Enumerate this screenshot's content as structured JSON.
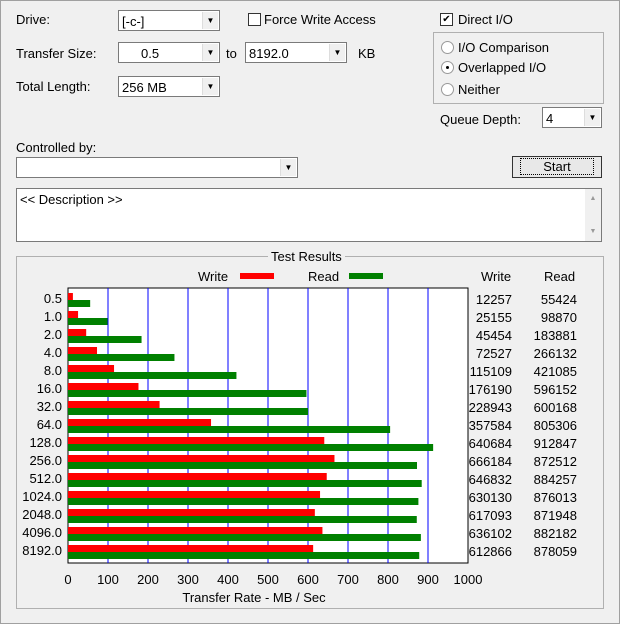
{
  "controls": {
    "drive_label": "Drive:",
    "drive_value": "[-c-]",
    "force_write_label": "Force Write Access",
    "force_write_checked": false,
    "direct_io_label": "Direct I/O",
    "direct_io_checked": true,
    "transfer_size_label": "Transfer Size:",
    "transfer_from": "0.5",
    "to_label": "to",
    "transfer_to": "8192.0",
    "kb_label": "KB",
    "total_length_label": "Total Length:",
    "total_length_value": "256 MB",
    "io_options": [
      {
        "label": "I/O Comparison",
        "selected": false
      },
      {
        "label": "Overlapped I/O",
        "selected": true
      },
      {
        "label": "Neither",
        "selected": false
      }
    ],
    "queue_depth_label": "Queue Depth:",
    "queue_depth_value": "4",
    "controlled_by_label": "Controlled by:",
    "controlled_by_value": "",
    "start_label": "Start",
    "description": "<< Description >>"
  },
  "results": {
    "title": "Test Results",
    "write_legend": "Write",
    "read_legend": "Read",
    "write_col": "Write",
    "read_col": "Read",
    "colors": {
      "write": "#ff0000",
      "read": "#008000",
      "grid": "#0000ff"
    }
  },
  "chart_data": {
    "type": "bar",
    "orientation": "horizontal",
    "xlabel": "Transfer Rate - MB / Sec",
    "xlim": [
      0,
      1000
    ],
    "xticks": [
      "0",
      "100",
      "200",
      "300",
      "400",
      "500",
      "600",
      "700",
      "800",
      "900",
      "1000"
    ],
    "categories": [
      "0.5",
      "1.0",
      "2.0",
      "4.0",
      "8.0",
      "16.0",
      "32.0",
      "64.0",
      "128.0",
      "256.0",
      "512.0",
      "1024.0",
      "2048.0",
      "4096.0",
      "8192.0"
    ],
    "series": [
      {
        "name": "Write",
        "values": [
          12257,
          25155,
          45454,
          72527,
          115109,
          176190,
          228943,
          357584,
          640684,
          666184,
          646832,
          630130,
          617093,
          636102,
          612866
        ]
      },
      {
        "name": "Read",
        "values": [
          55424,
          98870,
          183881,
          266132,
          421085,
          596152,
          600168,
          805306,
          912847,
          872512,
          884257,
          876013,
          871948,
          882182,
          878059
        ]
      }
    ]
  }
}
